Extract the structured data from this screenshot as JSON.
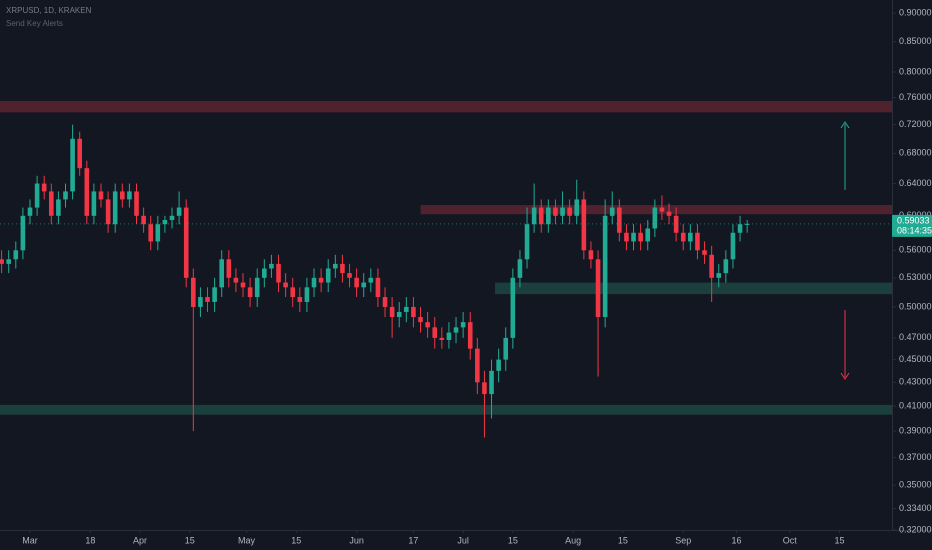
{
  "chart_data": {
    "type": "candlestick",
    "title": "XRPUSD, 1D, KRAKEN",
    "subtitle": "Send Key Alerts",
    "x": [
      -8,
      -6,
      -4,
      -2,
      0,
      2,
      4,
      6,
      8,
      10,
      12,
      14,
      16,
      18,
      20,
      22,
      24,
      26,
      28,
      30,
      32,
      34,
      36,
      38,
      40,
      42,
      44,
      46,
      48,
      50,
      52,
      54,
      56,
      58,
      60,
      62,
      64,
      66,
      68,
      70,
      72,
      74,
      76,
      78,
      80,
      82,
      84,
      86,
      88,
      90,
      92,
      94,
      96,
      98,
      100,
      102,
      104,
      106,
      108,
      110,
      112,
      114,
      116,
      118,
      120,
      122,
      124,
      126,
      128,
      130,
      132,
      134,
      136,
      138,
      140,
      142,
      144,
      146,
      148,
      150,
      152,
      154,
      156,
      158,
      160,
      162,
      164,
      166,
      168,
      170,
      172,
      174,
      176,
      178,
      180,
      182,
      184,
      186,
      188,
      190,
      192,
      194,
      196,
      198,
      200,
      202
    ],
    "open": [
      0.55,
      0.545,
      0.55,
      0.56,
      0.6,
      0.61,
      0.64,
      0.63,
      0.6,
      0.62,
      0.63,
      0.7,
      0.66,
      0.6,
      0.63,
      0.62,
      0.59,
      0.63,
      0.62,
      0.63,
      0.6,
      0.59,
      0.57,
      0.59,
      0.595,
      0.6,
      0.61,
      0.53,
      0.5,
      0.51,
      0.505,
      0.52,
      0.55,
      0.53,
      0.525,
      0.52,
      0.51,
      0.53,
      0.54,
      0.545,
      0.525,
      0.52,
      0.51,
      0.505,
      0.52,
      0.53,
      0.525,
      0.54,
      0.545,
      0.535,
      0.53,
      0.52,
      0.525,
      0.53,
      0.51,
      0.5,
      0.49,
      0.495,
      0.5,
      0.49,
      0.485,
      0.48,
      0.47,
      0.468,
      0.475,
      0.48,
      0.485,
      0.46,
      0.43,
      0.42,
      0.44,
      0.45,
      0.47,
      0.53,
      0.55,
      0.59,
      0.61,
      0.59,
      0.61,
      0.6,
      0.61,
      0.6,
      0.62,
      0.56,
      0.55,
      0.49,
      0.6,
      0.61,
      0.58,
      0.57,
      0.58,
      0.57,
      0.585,
      0.61,
      0.605,
      0.6,
      0.58,
      0.57,
      0.58,
      0.56,
      0.555,
      0.53,
      0.535,
      0.55,
      0.58,
      0.59
    ],
    "high": [
      0.56,
      0.56,
      0.57,
      0.61,
      0.62,
      0.65,
      0.65,
      0.64,
      0.63,
      0.64,
      0.72,
      0.71,
      0.67,
      0.64,
      0.64,
      0.63,
      0.64,
      0.64,
      0.64,
      0.64,
      0.61,
      0.6,
      0.6,
      0.6,
      0.61,
      0.63,
      0.62,
      0.54,
      0.52,
      0.52,
      0.53,
      0.56,
      0.56,
      0.54,
      0.535,
      0.53,
      0.54,
      0.55,
      0.555,
      0.555,
      0.535,
      0.53,
      0.52,
      0.53,
      0.54,
      0.54,
      0.55,
      0.555,
      0.555,
      0.545,
      0.54,
      0.535,
      0.54,
      0.54,
      0.52,
      0.51,
      0.505,
      0.51,
      0.51,
      0.5,
      0.495,
      0.49,
      0.48,
      0.485,
      0.49,
      0.495,
      0.495,
      0.47,
      0.44,
      0.45,
      0.46,
      0.48,
      0.54,
      0.56,
      0.61,
      0.64,
      0.62,
      0.62,
      0.62,
      0.63,
      0.62,
      0.645,
      0.63,
      0.57,
      0.56,
      0.62,
      0.63,
      0.62,
      0.59,
      0.59,
      0.59,
      0.595,
      0.62,
      0.625,
      0.615,
      0.61,
      0.59,
      0.59,
      0.59,
      0.57,
      0.565,
      0.545,
      0.56,
      0.59,
      0.6,
      0.595
    ],
    "low": [
      0.535,
      0.535,
      0.54,
      0.55,
      0.59,
      0.6,
      0.62,
      0.59,
      0.59,
      0.61,
      0.62,
      0.65,
      0.59,
      0.59,
      0.61,
      0.58,
      0.58,
      0.61,
      0.61,
      0.59,
      0.58,
      0.56,
      0.56,
      0.58,
      0.585,
      0.59,
      0.52,
      0.39,
      0.49,
      0.495,
      0.495,
      0.51,
      0.52,
      0.515,
      0.51,
      0.5,
      0.5,
      0.52,
      0.53,
      0.515,
      0.51,
      0.5,
      0.495,
      0.495,
      0.51,
      0.515,
      0.515,
      0.53,
      0.525,
      0.52,
      0.51,
      0.51,
      0.515,
      0.5,
      0.49,
      0.47,
      0.48,
      0.485,
      0.48,
      0.475,
      0.47,
      0.46,
      0.46,
      0.46,
      0.465,
      0.47,
      0.45,
      0.42,
      0.385,
      0.4,
      0.43,
      0.44,
      0.46,
      0.52,
      0.54,
      0.58,
      0.58,
      0.58,
      0.59,
      0.59,
      0.59,
      0.59,
      0.55,
      0.54,
      0.435,
      0.48,
      0.59,
      0.57,
      0.56,
      0.56,
      0.56,
      0.56,
      0.575,
      0.595,
      0.59,
      0.57,
      0.56,
      0.56,
      0.55,
      0.545,
      0.505,
      0.52,
      0.525,
      0.54,
      0.57,
      0.58
    ],
    "close": [
      0.545,
      0.55,
      0.56,
      0.6,
      0.61,
      0.64,
      0.63,
      0.6,
      0.62,
      0.63,
      0.7,
      0.66,
      0.6,
      0.63,
      0.62,
      0.59,
      0.63,
      0.62,
      0.63,
      0.6,
      0.59,
      0.57,
      0.59,
      0.595,
      0.6,
      0.61,
      0.53,
      0.5,
      0.51,
      0.505,
      0.52,
      0.55,
      0.53,
      0.525,
      0.52,
      0.51,
      0.53,
      0.54,
      0.545,
      0.525,
      0.52,
      0.51,
      0.505,
      0.52,
      0.53,
      0.525,
      0.54,
      0.545,
      0.535,
      0.53,
      0.52,
      0.525,
      0.53,
      0.51,
      0.5,
      0.49,
      0.495,
      0.5,
      0.49,
      0.485,
      0.48,
      0.47,
      0.468,
      0.475,
      0.48,
      0.485,
      0.46,
      0.43,
      0.42,
      0.44,
      0.45,
      0.47,
      0.53,
      0.55,
      0.59,
      0.61,
      0.59,
      0.61,
      0.6,
      0.61,
      0.6,
      0.62,
      0.56,
      0.55,
      0.49,
      0.6,
      0.61,
      0.58,
      0.57,
      0.58,
      0.57,
      0.585,
      0.61,
      0.605,
      0.6,
      0.58,
      0.57,
      0.58,
      0.56,
      0.555,
      0.53,
      0.535,
      0.55,
      0.58,
      0.59,
      0.59033
    ],
    "up_color": "#22ab94",
    "down_color": "#f23645",
    "countdown": "08:14:35",
    "zones": [
      {
        "low": 0.738,
        "high": 0.755,
        "color": "#5a2530"
      },
      {
        "low": 0.602,
        "high": 0.613,
        "start": 110,
        "color": "#5a2530"
      },
      {
        "low": 0.513,
        "high": 0.525,
        "start": 131,
        "color": "#1d4641"
      },
      {
        "low": 0.403,
        "high": 0.411,
        "color": "#1d4641"
      }
    ],
    "log_scale": true,
    "grid": false,
    "xlim": [
      -8.45,
      242.8
    ],
    "xticks": [
      {
        "value": 0,
        "label": "Mar"
      },
      {
        "value": 17,
        "label": "18"
      },
      {
        "value": 31,
        "label": "Apr"
      },
      {
        "value": 45,
        "label": "15"
      },
      {
        "value": 61,
        "label": "May"
      },
      {
        "value": 75,
        "label": "15"
      },
      {
        "value": 92,
        "label": "Jun"
      },
      {
        "value": 108,
        "label": "17"
      },
      {
        "value": 122,
        "label": "Jul"
      },
      {
        "value": 136,
        "label": "15"
      },
      {
        "value": 153,
        "label": "Aug"
      },
      {
        "value": 167,
        "label": "15"
      },
      {
        "value": 184,
        "label": "Sep"
      },
      {
        "value": 199,
        "label": "16"
      },
      {
        "value": 214,
        "label": "Oct"
      },
      {
        "value": 228,
        "label": "15"
      }
    ],
    "ylim": [
      0.32,
      0.924
    ],
    "yticks": [
      {
        "value": 0.9,
        "label": "0.90000"
      },
      {
        "value": 0.85,
        "label": "0.85000"
      },
      {
        "value": 0.8,
        "label": "0.80000"
      },
      {
        "value": 0.76,
        "label": "0.76000"
      },
      {
        "value": 0.72,
        "label": "0.72000"
      },
      {
        "value": 0.68,
        "label": "0.68000"
      },
      {
        "value": 0.64,
        "label": "0.64000"
      },
      {
        "value": 0.6,
        "label": "0.60000"
      },
      {
        "value": 0.56,
        "label": "0.56000"
      },
      {
        "value": 0.53,
        "label": "0.53000"
      },
      {
        "value": 0.5,
        "label": "0.50000"
      },
      {
        "value": 0.47,
        "label": "0.47000"
      },
      {
        "value": 0.45,
        "label": "0.45000"
      },
      {
        "value": 0.43,
        "label": "0.43000"
      },
      {
        "value": 0.41,
        "label": "0.41000"
      },
      {
        "value": 0.39,
        "label": "0.39000"
      },
      {
        "value": 0.37,
        "label": "0.37000"
      },
      {
        "value": 0.35,
        "label": "0.35000"
      },
      {
        "value": 0.334,
        "label": "0.33400"
      },
      {
        "value": 0.32,
        "label": "0.32000"
      }
    ]
  }
}
